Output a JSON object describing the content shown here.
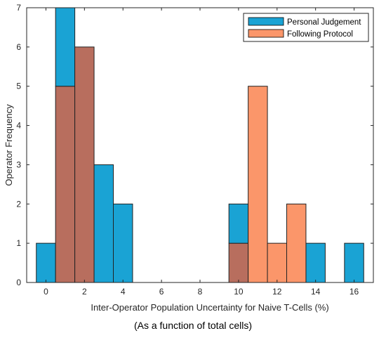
{
  "chart_data": {
    "type": "bar",
    "subtype": "histogram",
    "xlabel": "Inter-Operator Population Uncertainty for Naive T-Cells (%)",
    "ylabel": "Operator Frequency",
    "caption": "(As a function of total cells)",
    "xlim": [
      -1,
      17
    ],
    "ylim": [
      0,
      7
    ],
    "xticks": [
      0,
      2,
      4,
      6,
      8,
      10,
      12,
      14,
      16
    ],
    "yticks": [
      0,
      1,
      2,
      3,
      4,
      5,
      6,
      7
    ],
    "grid": false,
    "legend_position": "top-right",
    "overlap_color": "#b86e5e",
    "series": [
      {
        "name": "Personal Judgement",
        "color": "#1aa3d4",
        "bins": [
          {
            "x0": -0.5,
            "x1": 0.5,
            "value": 1
          },
          {
            "x0": 0.5,
            "x1": 1.5,
            "value": 7
          },
          {
            "x0": 1.5,
            "x1": 2.5,
            "value": 6
          },
          {
            "x0": 2.5,
            "x1": 3.5,
            "value": 3
          },
          {
            "x0": 3.5,
            "x1": 4.5,
            "value": 2
          },
          {
            "x0": 9.5,
            "x1": 10.5,
            "value": 2
          },
          {
            "x0": 13.5,
            "x1": 14.5,
            "value": 1
          },
          {
            "x0": 15.5,
            "x1": 16.5,
            "value": 1
          }
        ]
      },
      {
        "name": "Following Protocol",
        "color": "#fb966a",
        "bins": [
          {
            "x0": 0.5,
            "x1": 1.5,
            "value": 5
          },
          {
            "x0": 1.5,
            "x1": 2.5,
            "value": 6
          },
          {
            "x0": 9.5,
            "x1": 10.5,
            "value": 1
          },
          {
            "x0": 10.5,
            "x1": 11.5,
            "value": 5
          },
          {
            "x0": 11.5,
            "x1": 12.5,
            "value": 1
          },
          {
            "x0": 12.5,
            "x1": 13.5,
            "value": 2
          }
        ]
      }
    ]
  }
}
